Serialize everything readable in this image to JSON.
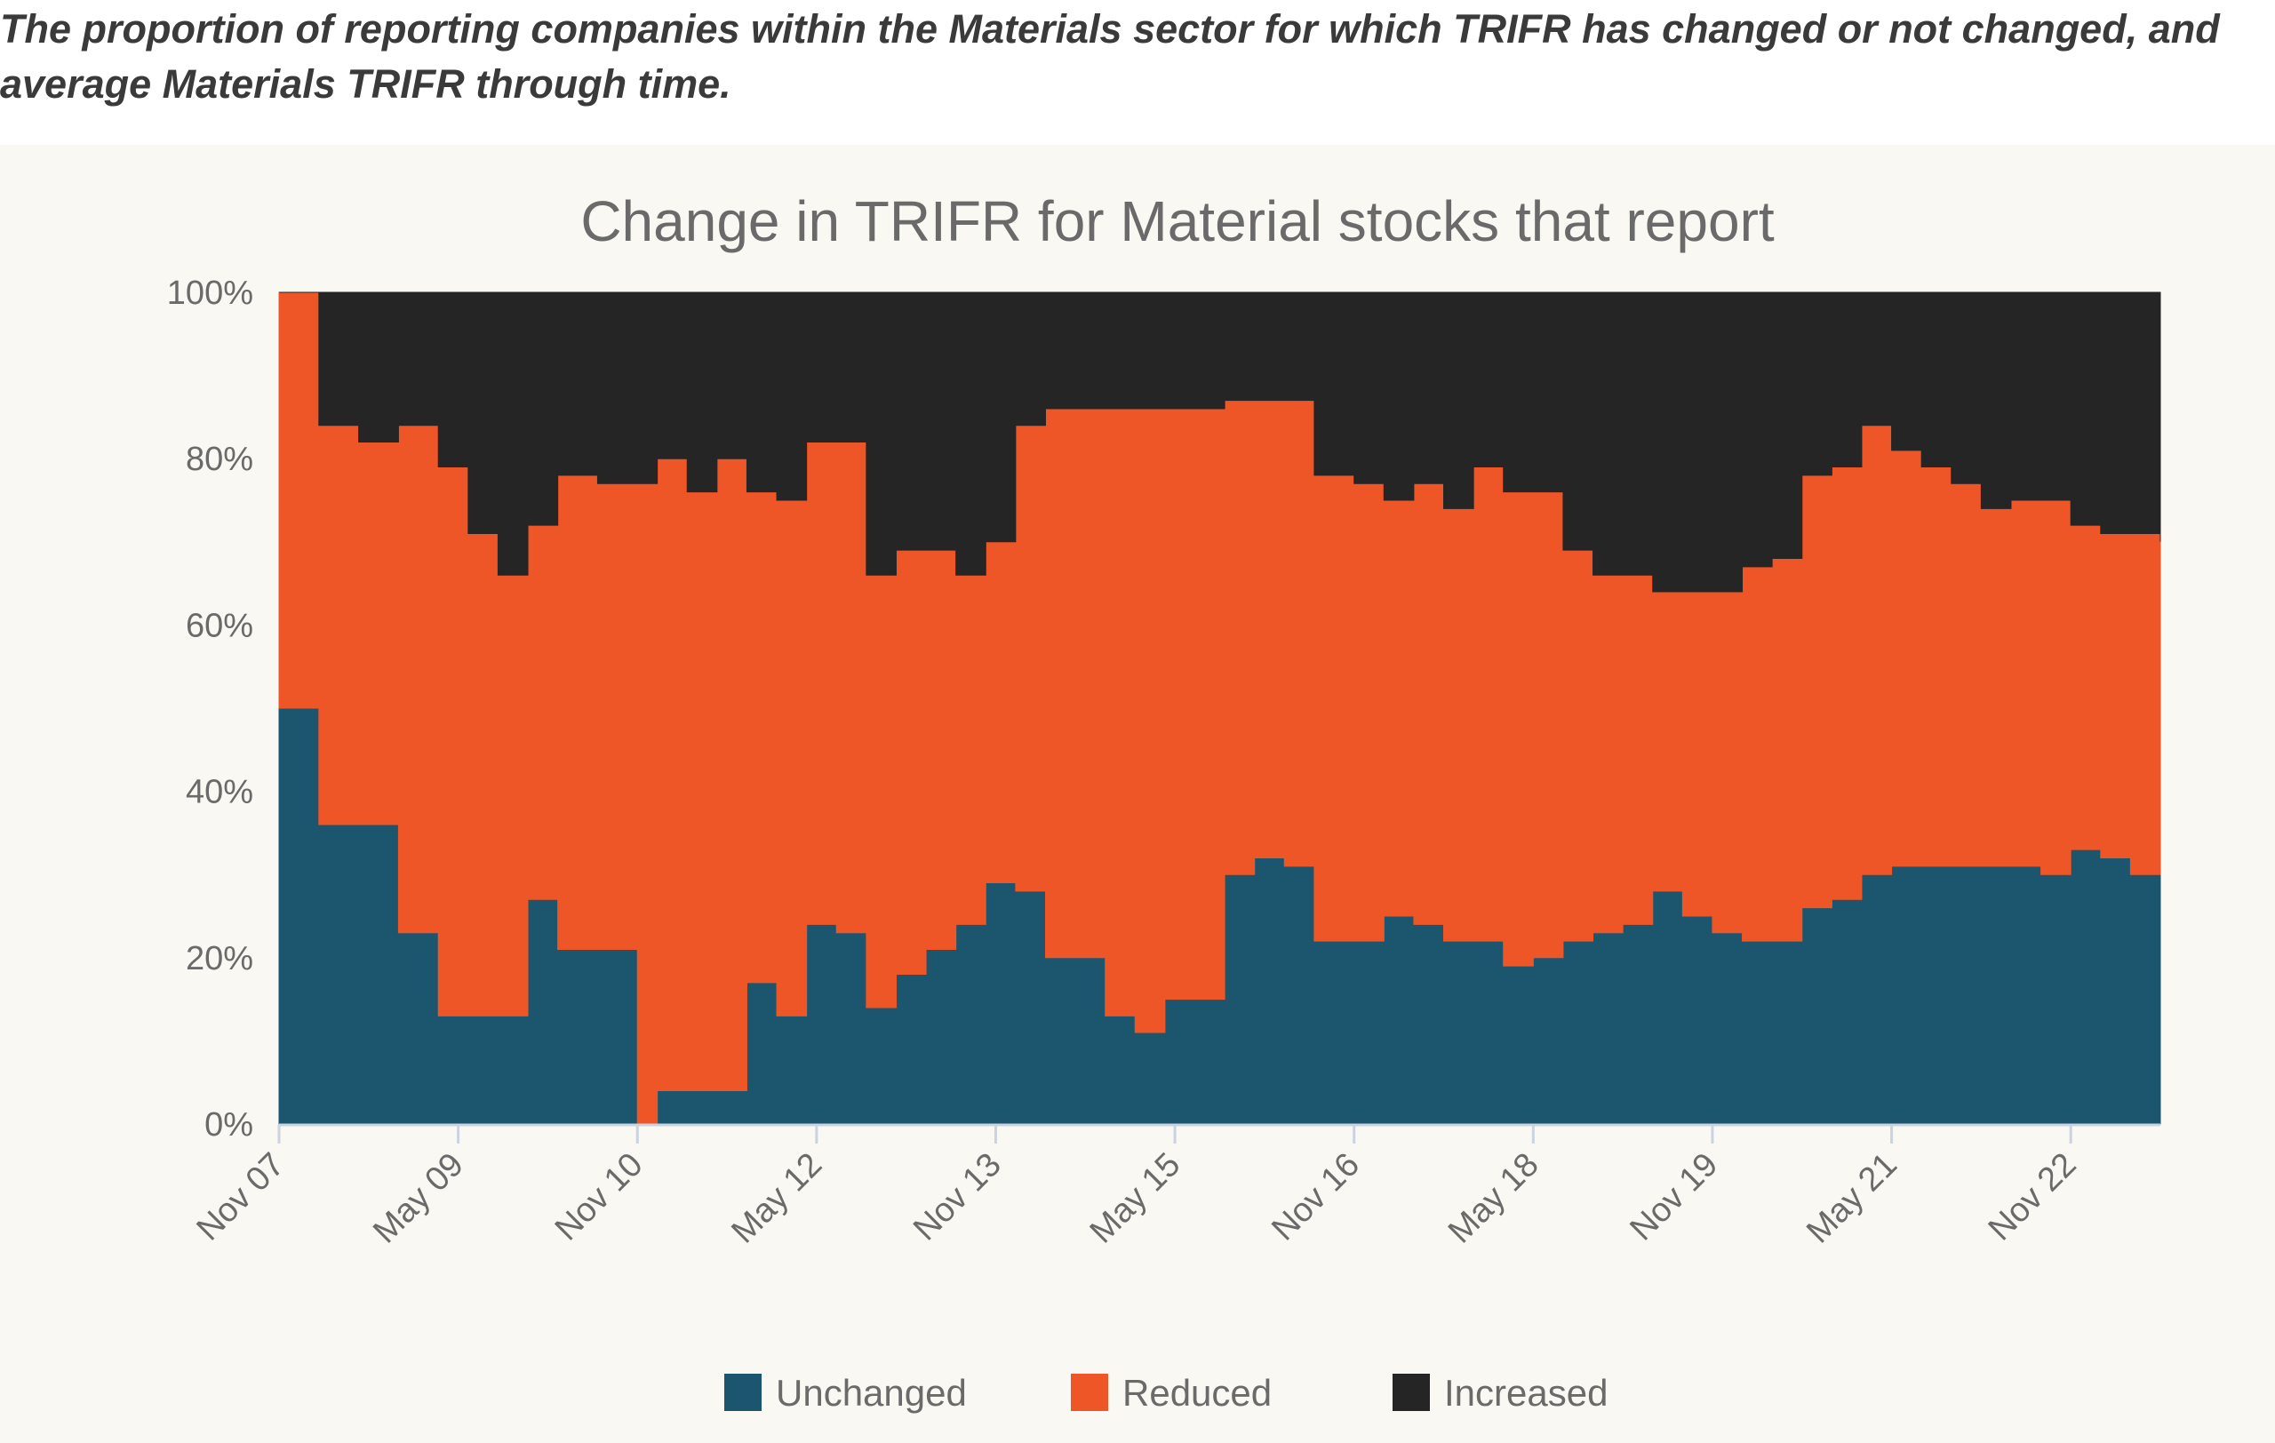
{
  "caption": "The proportion of reporting companies within the Materials sector for which TRIFR has changed or not changed, and average Materials TRIFR through time.",
  "chart_data": {
    "type": "area",
    "stacked": true,
    "normalized": true,
    "title": "Change in TRIFR for Material stocks that report",
    "xlabel": "",
    "ylabel": "",
    "ylim": [
      0,
      100
    ],
    "y_ticks": [
      "0%",
      "20%",
      "40%",
      "60%",
      "80%",
      "100%"
    ],
    "x_ticks": [
      "Nov 07",
      "May 09",
      "Nov 10",
      "May 12",
      "Nov 13",
      "May 15",
      "Nov 16",
      "May 18",
      "Nov 19",
      "May 21",
      "Nov 22"
    ],
    "x_range": [
      "2007-11",
      "2023-08"
    ],
    "x": [
      "2007-11",
      "2008-03",
      "2008-07",
      "2008-11",
      "2009-03",
      "2009-06",
      "2009-09",
      "2009-12",
      "2010-03",
      "2010-07",
      "2010-11",
      "2011-01",
      "2011-04",
      "2011-07",
      "2011-10",
      "2012-01",
      "2012-04",
      "2012-07",
      "2012-10",
      "2013-01",
      "2013-04",
      "2013-07",
      "2013-10",
      "2014-01",
      "2014-04",
      "2014-07",
      "2014-10",
      "2015-01",
      "2015-04",
      "2015-07",
      "2015-10",
      "2016-01",
      "2016-04",
      "2016-07",
      "2016-11",
      "2017-02",
      "2017-05",
      "2017-08",
      "2017-11",
      "2018-02",
      "2018-05",
      "2018-08",
      "2018-11",
      "2019-02",
      "2019-05",
      "2019-08",
      "2019-11",
      "2020-02",
      "2020-05",
      "2020-08",
      "2020-11",
      "2021-02",
      "2021-05",
      "2021-08",
      "2021-11",
      "2022-02",
      "2022-05",
      "2022-08",
      "2022-11",
      "2023-02",
      "2023-05",
      "2023-08"
    ],
    "series": [
      {
        "name": "Unchanged",
        "color": "#1b566e",
        "values": [
          50,
          36,
          36,
          23,
          13,
          13,
          13,
          27,
          21,
          21,
          0,
          4,
          4,
          4,
          17,
          13,
          24,
          23,
          14,
          18,
          21,
          24,
          29,
          28,
          20,
          20,
          13,
          11,
          15,
          15,
          30,
          32,
          31,
          22,
          22,
          25,
          24,
          22,
          22,
          19,
          20,
          22,
          23,
          24,
          28,
          25,
          23,
          22,
          22,
          26,
          27,
          30,
          31,
          31,
          31,
          31,
          31,
          30,
          33,
          32,
          30,
          31
        ]
      },
      {
        "name": "Reduced",
        "color": "#ef5627",
        "values": [
          50,
          48,
          46,
          61,
          66,
          58,
          53,
          45,
          57,
          56,
          77,
          76,
          72,
          76,
          59,
          62,
          58,
          59,
          52,
          51,
          48,
          42,
          41,
          56,
          66,
          66,
          73,
          75,
          71,
          71,
          57,
          55,
          56,
          56,
          55,
          50,
          53,
          52,
          57,
          57,
          56,
          47,
          43,
          42,
          36,
          39,
          41,
          45,
          46,
          52,
          52,
          54,
          50,
          48,
          46,
          43,
          44,
          45,
          39,
          39,
          41,
          39
        ]
      },
      {
        "name": "Increased",
        "color": "#252525",
        "values": [
          0,
          16,
          18,
          16,
          21,
          29,
          34,
          28,
          22,
          23,
          23,
          20,
          24,
          20,
          24,
          25,
          18,
          18,
          34,
          31,
          31,
          34,
          30,
          16,
          14,
          14,
          14,
          14,
          14,
          14,
          13,
          13,
          13,
          22,
          23,
          25,
          23,
          26,
          21,
          24,
          24,
          31,
          34,
          34,
          36,
          36,
          36,
          33,
          32,
          22,
          21,
          16,
          19,
          21,
          23,
          26,
          25,
          25,
          28,
          29,
          29,
          30
        ]
      }
    ],
    "legend": {
      "position": "bottom",
      "entries": [
        "Unchanged",
        "Reduced",
        "Increased"
      ]
    },
    "grid": false
  }
}
